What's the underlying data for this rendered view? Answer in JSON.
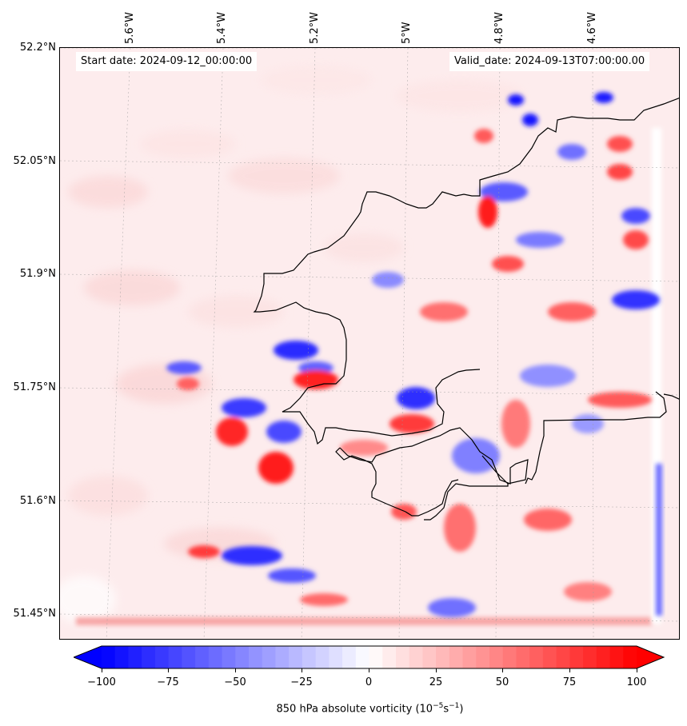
{
  "header": {
    "start_date": "Start date: 2024-09-12_00:00:00",
    "valid_date": "Valid_date: 2024-09-13T07:00:00.00"
  },
  "axes": {
    "lat_ticks": [
      "52.2°N",
      "52.05°N",
      "51.9°N",
      "51.75°N",
      "51.6°N",
      "51.45°N"
    ],
    "lon_ticks": [
      "5.6°W",
      "5.4°W",
      "5.2°W",
      "5°W",
      "4.8°W",
      "4.6°W"
    ]
  },
  "colorbar": {
    "ticks": [
      "−100",
      "−75",
      "−50",
      "−25",
      "0",
      "25",
      "50",
      "75",
      "100"
    ],
    "label_main": "850 hPa absolute vorticity (10",
    "label_sup1": "−5",
    "label_mid": "s",
    "label_sup2": "−1",
    "label_end": ")",
    "min": -100,
    "max": 100,
    "levels": 40,
    "extend": "both",
    "color_low": "#0000ff",
    "color_mid": "#ffffff",
    "color_high": "#ff0000"
  },
  "map": {
    "projection": "lambert",
    "coastline_color": "#000000",
    "gridlines": "dotted-grey"
  }
}
